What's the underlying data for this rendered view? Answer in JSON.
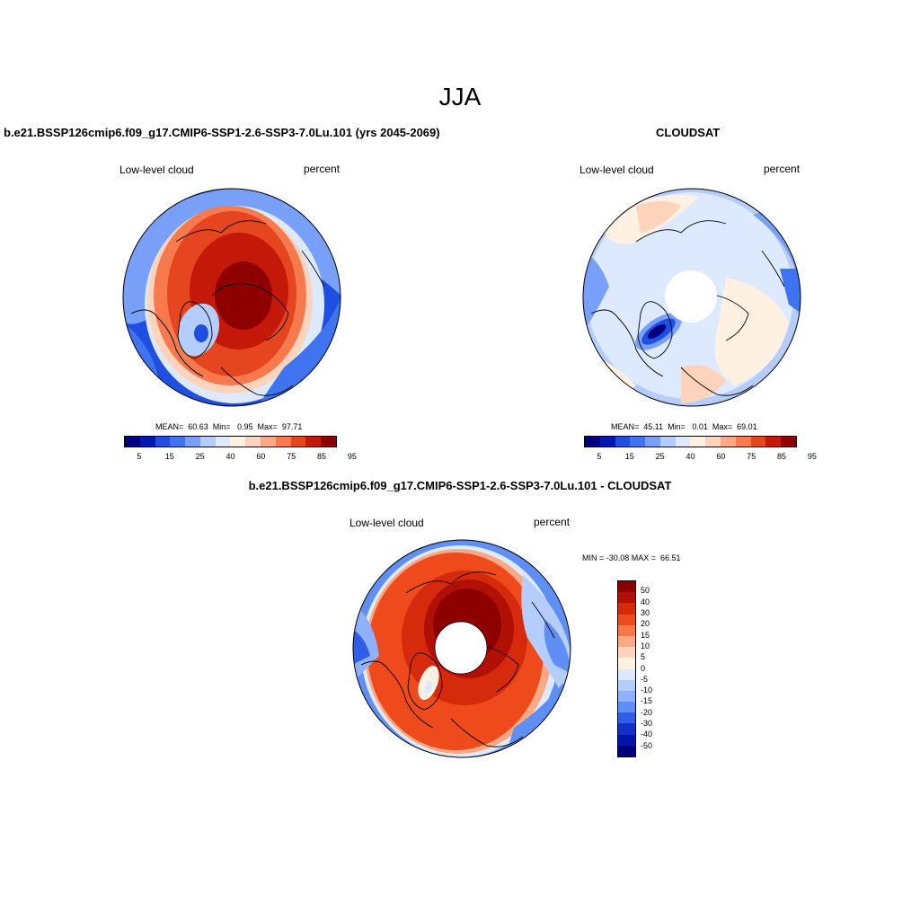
{
  "figure": {
    "title": "JJA"
  },
  "panels": [
    {
      "title": "b.e21.BSSP126cmip6.f09_g17.CMIP6-SSP1-2.6-SSP3-7.0Lu.101 (yrs 2045-2069)",
      "left_label": "Low-level cloud",
      "right_label": "percent",
      "stats": "MEAN=  60.63  Min=   0.95  Max=  97.71",
      "colorbar_ticks": [
        "5",
        "15",
        "25",
        "40",
        "60",
        "75",
        "85",
        "95"
      ]
    },
    {
      "title": "CLOUDSAT",
      "left_label": "Low-level cloud",
      "right_label": "percent",
      "stats": "MEAN=  45.11  Min=   0.01  Max=  69.01",
      "colorbar_ticks": [
        "5",
        "15",
        "25",
        "40",
        "60",
        "75",
        "85",
        "95"
      ]
    },
    {
      "title": "b.e21.BSSP126cmip6.f09_g17.CMIP6-SSP1-2.6-SSP3-7.0Lu.101 - CLOUDSAT",
      "left_label": "Low-level cloud",
      "right_label": "percent",
      "stats": "MIN = -30.08 MAX =  66.51",
      "colorbar_ticks": [
        "50",
        "40",
        "30",
        "20",
        "15",
        "10",
        "5",
        "0",
        "-5",
        "-10",
        "-15",
        "-20",
        "-30",
        "-40",
        "-50"
      ]
    }
  ],
  "colors": {
    "seq": [
      "#00007e",
      "#0018b4",
      "#1f4fe0",
      "#3f73f0",
      "#78a0f8",
      "#b4cdfc",
      "#dde9fe",
      "#fff1e2",
      "#fdd3bb",
      "#fba884",
      "#f67a4e",
      "#e5451f",
      "#c41808",
      "#8e0000"
    ],
    "diff": [
      "#8e0000",
      "#b11007",
      "#d62a0c",
      "#ef4a1c",
      "#f7784a",
      "#fba884",
      "#fdd3bb",
      "#fff1e2",
      "#dde9fe",
      "#b4cdfc",
      "#8fb0fa",
      "#5f8ff4",
      "#2f5fe8",
      "#1530c8",
      "#0016a8",
      "#00007e"
    ],
    "coast": "#000000"
  }
}
